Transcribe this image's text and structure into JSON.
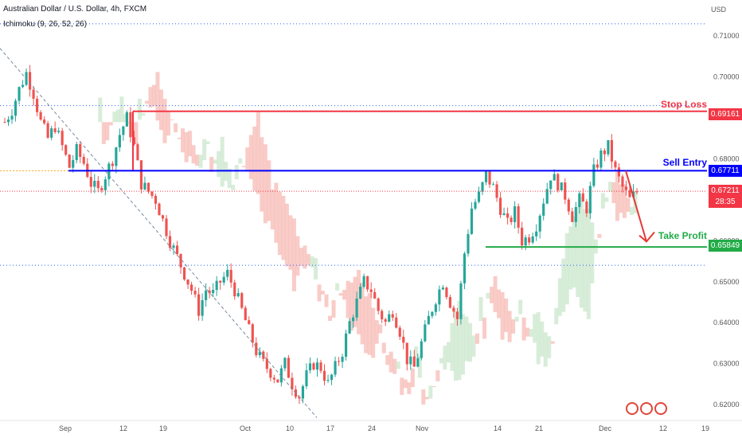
{
  "header": {
    "title": "Australian Dollar / U.S. Dollar, 4h, FXCM",
    "indicator": "Ichimoku (9, 26, 52, 26)"
  },
  "price_axis_unit": "USD",
  "colors": {
    "stop_loss": "#f23645",
    "sell_entry": "#0000ff",
    "take_profit": "#22ab47",
    "current_price": "#f23645",
    "bull_candle": "#26a69a",
    "bear_candle": "#ef5350",
    "cloud_bear": "#f7b7b0",
    "cloud_bull": "#c8e6c9",
    "dotted_level": "#2962ff"
  },
  "levels": {
    "stop_loss": {
      "label": "Stop Loss",
      "value": "0.69161"
    },
    "sell_entry": {
      "label": "Sell Entry",
      "value": "0.67711"
    },
    "take_profit": {
      "label": "Take Profit",
      "value": "0.65849"
    },
    "current": {
      "value": "0.67211",
      "countdown": "28:35"
    }
  },
  "event_icons": [
    "us-flag-icon",
    "au-flag-icon",
    "us-flag-icon"
  ],
  "chart_data": {
    "type": "candlestick",
    "title": "Australian Dollar / U.S. Dollar, 4h, FXCM",
    "y_ticks": [
      0.62,
      0.63,
      0.64,
      0.65,
      0.66,
      0.67,
      0.68,
      0.69,
      0.7,
      0.71
    ],
    "ylim": [
      0.6165,
      0.7188
    ],
    "x_ticks": [
      "Sep",
      "12",
      "19",
      "Oct",
      "10",
      "17",
      "24",
      "Nov",
      "14",
      "21",
      "Dec",
      "12",
      "19"
    ],
    "dotted_levels": [
      0.713,
      0.693,
      0.654,
      0.616
    ],
    "price_path_close": [
      0.689,
      0.692,
      0.697,
      0.701,
      0.696,
      0.689,
      0.685,
      0.688,
      0.683,
      0.678,
      0.682,
      0.679,
      0.674,
      0.672,
      0.676,
      0.68,
      0.686,
      0.69,
      0.683,
      0.674,
      0.672,
      0.67,
      0.665,
      0.66,
      0.656,
      0.652,
      0.648,
      0.643,
      0.648,
      0.647,
      0.65,
      0.652,
      0.648,
      0.643,
      0.638,
      0.633,
      0.63,
      0.628,
      0.626,
      0.63,
      0.625,
      0.622,
      0.627,
      0.63,
      0.629,
      0.625,
      0.629,
      0.633,
      0.64,
      0.645,
      0.65,
      0.648,
      0.643,
      0.64,
      0.643,
      0.638,
      0.631,
      0.629,
      0.635,
      0.641,
      0.646,
      0.65,
      0.645,
      0.641,
      0.657,
      0.668,
      0.671,
      0.676,
      0.673,
      0.668,
      0.664,
      0.667,
      0.66,
      0.661,
      0.664,
      0.67,
      0.676,
      0.674,
      0.671,
      0.666,
      0.67,
      0.668,
      0.677,
      0.681,
      0.683,
      0.677,
      0.673,
      0.67,
      0.6721
    ],
    "x_dates_span": [
      "Sep",
      "Dec"
    ]
  }
}
